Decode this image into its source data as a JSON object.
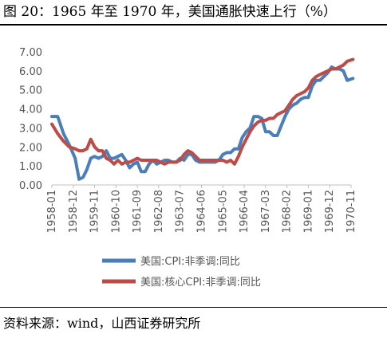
{
  "header": {
    "title": "图 20：1965 年至 1970 年，美国通胀快速上行（%）"
  },
  "footer": {
    "source": "资料来源：wind，山西证券研究所"
  },
  "colors": {
    "series_1": "#4a7ebb",
    "series_2": "#be4b48",
    "axis": "#bfbfbf",
    "tick_text": "#595959"
  },
  "chart_data": {
    "type": "line",
    "title": "",
    "xlabel": "",
    "ylabel": "",
    "ylim": [
      0,
      7
    ],
    "y_ticks": [
      "0.00",
      "1.00",
      "2.00",
      "3.00",
      "4.00",
      "5.00",
      "6.00",
      "7.00"
    ],
    "x_ticks": [
      "1958-01",
      "1958-12",
      "1959-11",
      "1960-10",
      "1961-09",
      "1962-08",
      "1963-07",
      "1964-06",
      "1965-05",
      "1966-04",
      "1967-03",
      "1968-02",
      "1969-01",
      "1969-12",
      "1970-11"
    ],
    "grid": false,
    "legend_position": "bottom",
    "series": [
      {
        "name": "美国:CPI:非季调:同比",
        "color": "#4a7ebb",
        "x": [
          "1958-01",
          "1958-04",
          "1958-07",
          "1958-10",
          "1959-01",
          "1959-03",
          "1959-05",
          "1959-07",
          "1959-09",
          "1959-11",
          "1960-01",
          "1960-03",
          "1960-05",
          "1960-07",
          "1960-09",
          "1960-11",
          "1961-01",
          "1961-03",
          "1961-05",
          "1961-07",
          "1961-09",
          "1961-11",
          "1962-01",
          "1962-03",
          "1962-05",
          "1962-07",
          "1962-09",
          "1962-11",
          "1963-01",
          "1963-03",
          "1963-05",
          "1963-07",
          "1963-09",
          "1963-11",
          "1964-01",
          "1964-03",
          "1964-05",
          "1964-07",
          "1964-09",
          "1964-11",
          "1965-01",
          "1965-03",
          "1965-05",
          "1965-07",
          "1965-09",
          "1965-11",
          "1966-01",
          "1966-03",
          "1966-05",
          "1966-07",
          "1966-09",
          "1966-11",
          "1967-01",
          "1967-03",
          "1967-05",
          "1967-07",
          "1967-09",
          "1967-11",
          "1968-01",
          "1968-03",
          "1968-05",
          "1968-07",
          "1968-09",
          "1968-11",
          "1969-01",
          "1969-03",
          "1969-05",
          "1969-07",
          "1969-09",
          "1969-11",
          "1970-01",
          "1970-03",
          "1970-05",
          "1970-07",
          "1970-09",
          "1970-12"
        ],
        "values": [
          3.6,
          3.6,
          2.7,
          2.1,
          1.4,
          0.3,
          0.4,
          0.8,
          1.4,
          1.5,
          1.4,
          1.5,
          1.8,
          1.4,
          1.4,
          1.5,
          1.6,
          1.3,
          0.9,
          1.1,
          1.2,
          0.7,
          0.7,
          1.1,
          1.3,
          1.1,
          1.2,
          1.3,
          1.3,
          1.2,
          1.2,
          1.4,
          1.3,
          1.6,
          1.6,
          1.3,
          1.2,
          1.2,
          1.2,
          1.2,
          1.2,
          1.3,
          1.6,
          1.7,
          1.7,
          1.9,
          1.9,
          2.5,
          2.8,
          3.0,
          3.6,
          3.6,
          3.5,
          2.8,
          2.8,
          2.6,
          2.6,
          3.1,
          3.6,
          4.0,
          4.2,
          4.3,
          4.5,
          4.6,
          4.6,
          5.2,
          5.5,
          5.5,
          5.7,
          5.9,
          6.2,
          6.1,
          6.1,
          6.0,
          5.5,
          5.6
        ]
      },
      {
        "name": "美国:核心CPI:非季调:同比",
        "color": "#be4b48",
        "x": [
          "1958-01",
          "1958-04",
          "1958-07",
          "1958-10",
          "1959-01",
          "1959-03",
          "1959-05",
          "1959-07",
          "1959-09",
          "1959-11",
          "1960-01",
          "1960-03",
          "1960-05",
          "1960-07",
          "1960-09",
          "1960-11",
          "1961-01",
          "1961-03",
          "1961-05",
          "1961-07",
          "1961-09",
          "1961-11",
          "1962-01",
          "1962-03",
          "1962-05",
          "1962-07",
          "1962-09",
          "1962-11",
          "1963-01",
          "1963-03",
          "1963-05",
          "1963-07",
          "1963-09",
          "1963-11",
          "1964-01",
          "1964-03",
          "1964-05",
          "1964-07",
          "1964-09",
          "1964-11",
          "1965-01",
          "1965-03",
          "1965-05",
          "1965-07",
          "1965-09",
          "1965-11",
          "1966-01",
          "1966-03",
          "1966-05",
          "1966-07",
          "1966-09",
          "1966-11",
          "1967-01",
          "1967-03",
          "1967-05",
          "1967-07",
          "1967-09",
          "1967-11",
          "1968-01",
          "1968-03",
          "1968-05",
          "1968-07",
          "1968-09",
          "1968-11",
          "1969-01",
          "1969-03",
          "1969-05",
          "1969-07",
          "1969-09",
          "1969-11",
          "1970-01",
          "1970-03",
          "1970-05",
          "1970-07",
          "1970-09",
          "1970-12"
        ],
        "values": [
          3.2,
          2.7,
          2.3,
          2.0,
          1.9,
          1.8,
          1.8,
          1.9,
          2.4,
          2.0,
          1.8,
          1.8,
          1.4,
          1.3,
          1.1,
          1.3,
          1.1,
          1.2,
          1.2,
          1.3,
          1.4,
          1.3,
          1.3,
          1.3,
          1.3,
          1.3,
          1.2,
          1.1,
          1.2,
          1.2,
          1.2,
          1.3,
          1.6,
          1.8,
          1.7,
          1.5,
          1.3,
          1.3,
          1.3,
          1.3,
          1.3,
          1.3,
          1.3,
          1.2,
          1.3,
          1.1,
          1.5,
          2.0,
          2.4,
          2.8,
          3.1,
          3.3,
          3.4,
          3.4,
          3.5,
          3.5,
          3.7,
          3.8,
          3.9,
          4.2,
          4.5,
          4.7,
          4.8,
          4.9,
          5.1,
          5.5,
          5.7,
          5.8,
          5.9,
          6.0,
          6.1,
          6.1,
          6.2,
          6.3,
          6.5,
          6.6
        ]
      }
    ]
  }
}
